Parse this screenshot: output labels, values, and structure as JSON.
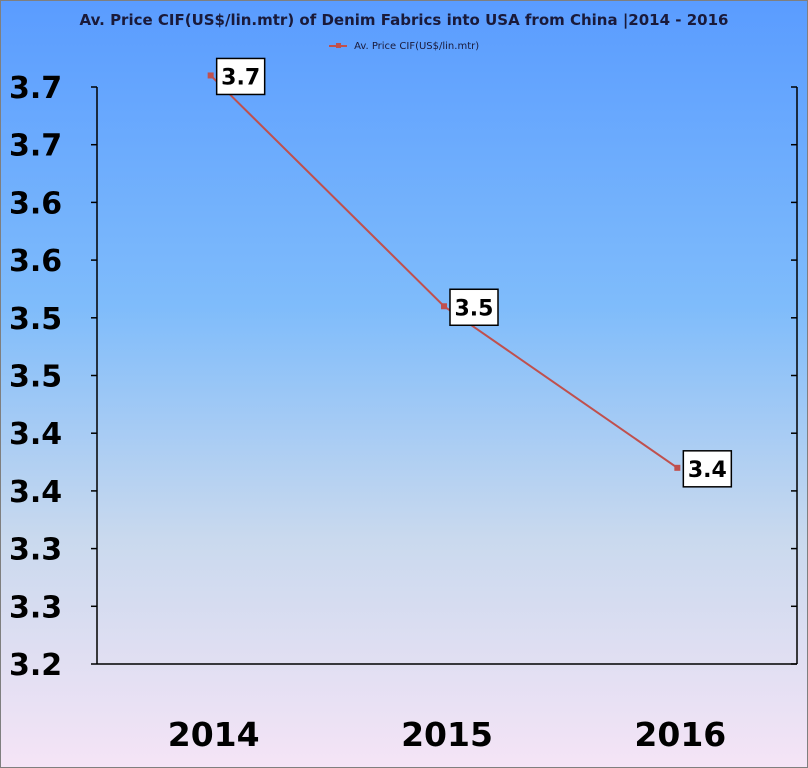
{
  "chart_data": {
    "type": "line",
    "title": "Av. Price CIF(US$/lin.mtr) of Denim Fabrics  into USA from China |2014 - 2016",
    "xlabel": "",
    "ylabel": "",
    "categories": [
      "2014",
      "2015",
      "2016"
    ],
    "series": [
      {
        "name": "Av. Price CIF(US$/lin.mtr)",
        "values": [
          3.71,
          3.51,
          3.37
        ],
        "labels": [
          "3.7",
          "3.5",
          "3.4"
        ],
        "color": "#c0504d"
      }
    ],
    "ylim": [
      3.2,
      3.7
    ],
    "yticks": [
      3.2,
      3.25,
      3.3,
      3.35,
      3.4,
      3.45,
      3.5,
      3.55,
      3.6,
      3.65,
      3.7
    ],
    "ytick_labels": [
      "3.2",
      "3.3",
      "3.3",
      "3.4",
      "3.4",
      "3.5",
      "3.5",
      "3.6",
      "3.6",
      "3.7",
      "3.7"
    ],
    "grid": false,
    "legend_position": "top-center"
  }
}
